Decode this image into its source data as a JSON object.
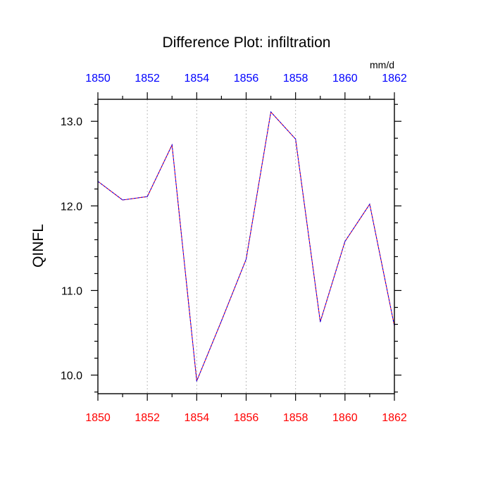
{
  "chart_data": {
    "type": "line",
    "title": "Difference Plot: infiltration",
    "units": "mm/d",
    "ylabel": "QINFL",
    "xlabel": "",
    "xlim": [
      1850,
      1862
    ],
    "ylim": [
      9.78,
      13.26
    ],
    "x_ticks": [
      1850,
      1852,
      1854,
      1856,
      1858,
      1860,
      1862
    ],
    "x_tick_labels": [
      "1850",
      "1852",
      "1854",
      "1856",
      "1858",
      "1860",
      "1862"
    ],
    "y_ticks": [
      10.0,
      11.0,
      12.0,
      13.0
    ],
    "y_tick_labels": [
      "10.0",
      "11.0",
      "12.0",
      "13.0"
    ],
    "grid": "vertical dotted at major x ticks",
    "colors": {
      "top_axis_labels": "#0000ff",
      "bottom_axis_labels": "#ff0000",
      "line_primary": "#ff0000",
      "line_secondary": "#0000ff",
      "grid": "#bbbbbb",
      "frame": "#000000"
    },
    "series": [
      {
        "x": [
          1850,
          1851,
          1852,
          1853,
          1854,
          1855,
          1856,
          1857,
          1858,
          1859,
          1860,
          1861,
          1862
        ],
        "values": [
          12.29,
          12.07,
          12.11,
          12.72,
          9.93,
          10.64,
          11.37,
          13.11,
          12.79,
          10.63,
          11.58,
          12.02,
          10.58
        ]
      }
    ]
  }
}
